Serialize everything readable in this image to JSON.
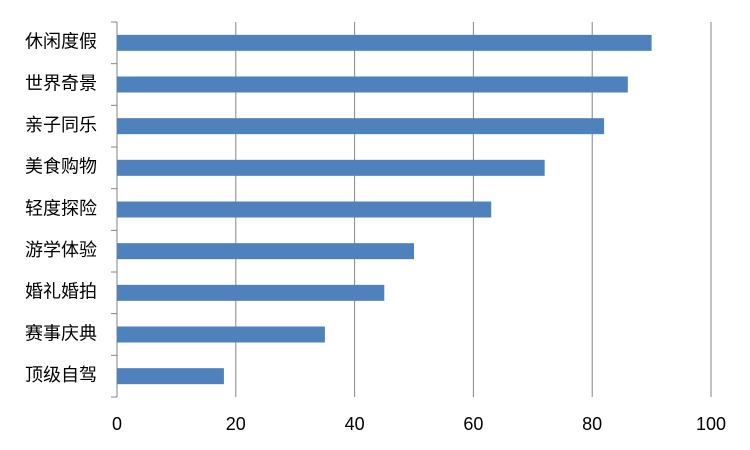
{
  "chart_data": {
    "type": "bar",
    "orientation": "horizontal",
    "categories": [
      "休闲度假",
      "世界奇景",
      "亲子同乐",
      "美食购物",
      "轻度探险",
      "游学体验",
      "婚礼婚拍",
      "赛事庆典",
      "顶级自驾"
    ],
    "values": [
      90,
      86,
      82,
      72,
      63,
      50,
      45,
      35,
      18
    ],
    "color": "#4f81bd",
    "xlim": [
      0,
      100
    ],
    "xticks": [
      0,
      20,
      40,
      60,
      80,
      100
    ],
    "grid": true
  }
}
